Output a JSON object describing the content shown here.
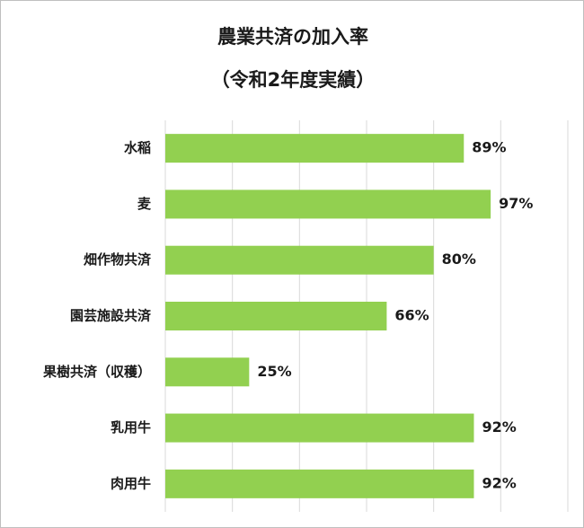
{
  "chart_data": {
    "type": "bar",
    "orientation": "horizontal",
    "title": "農業共済の加入率",
    "subtitle": "（令和2年度実績）",
    "categories": [
      "水稲",
      "麦",
      "畑作物共済",
      "園芸施設共済",
      "果樹共済（収穫）",
      "乳用牛",
      "肉用牛"
    ],
    "values": [
      89,
      97,
      80,
      66,
      25,
      92,
      92
    ],
    "value_labels": [
      "89%",
      "97%",
      "80%",
      "66%",
      "25%",
      "92%",
      "92%"
    ],
    "xlim": [
      0,
      120
    ],
    "gridlines": true,
    "legend": "none",
    "bar_color": "#92d050",
    "gridline_color": "#d9d9d9"
  }
}
